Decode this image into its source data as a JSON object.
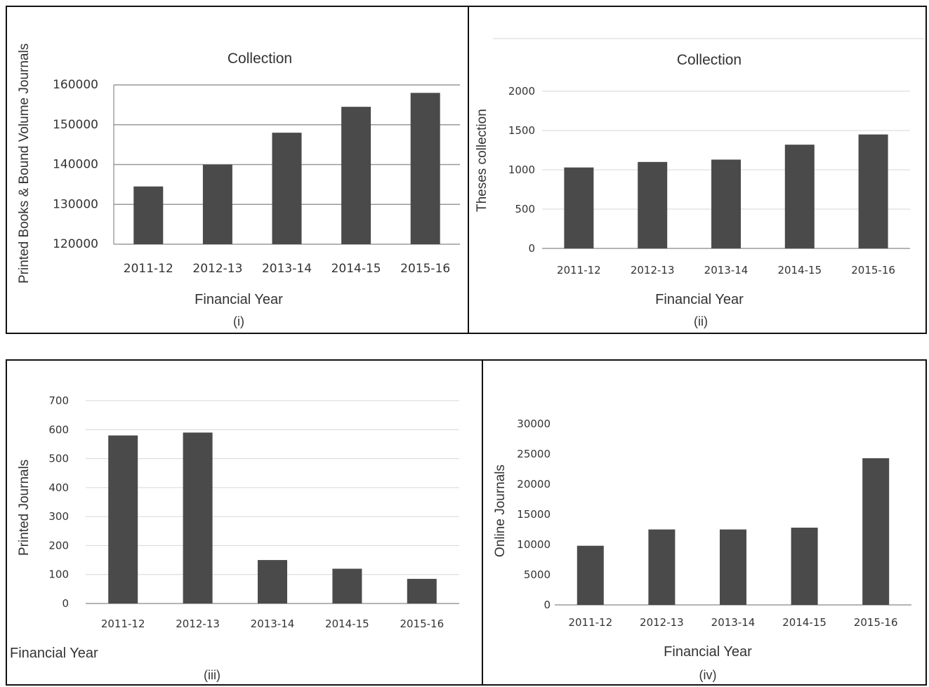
{
  "chart_data": [
    {
      "type": "bar",
      "title": "Collection",
      "xlabel": "Financial Year",
      "ylabel": "Printed Books & Bound Volume Journals",
      "panel_label": "(i)",
      "categories": [
        "2011-12",
        "2012-13",
        "2013-14",
        "2014-15",
        "2015-16"
      ],
      "values": [
        134500,
        140000,
        148000,
        154500,
        158000
      ],
      "yticks": [
        "120000",
        "130000",
        "140000",
        "150000",
        "160000"
      ],
      "ylim": [
        120000,
        160000
      ],
      "grid": true
    },
    {
      "type": "bar",
      "title": "Collection",
      "xlabel": "Financial Year",
      "ylabel": "Theses collection",
      "panel_label": "(ii)",
      "categories": [
        "2011-12",
        "2012-13",
        "2013-14",
        "2014-15",
        "2015-16"
      ],
      "values": [
        1030,
        1100,
        1130,
        1320,
        1450
      ],
      "yticks": [
        "0",
        "500",
        "1000",
        "1500",
        "2000"
      ],
      "ylim": [
        0,
        2000
      ],
      "grid": true
    },
    {
      "type": "bar",
      "title": "",
      "xlabel": "Financial Year",
      "ylabel": "Printed Journals",
      "panel_label": "(iii)",
      "categories": [
        "2011-12",
        "2012-13",
        "2013-14",
        "2014-15",
        "2015-16"
      ],
      "values": [
        580,
        590,
        150,
        120,
        85
      ],
      "yticks": [
        "0",
        "100",
        "200",
        "300",
        "400",
        "500",
        "600",
        "700"
      ],
      "ylim": [
        0,
        700
      ],
      "grid": true
    },
    {
      "type": "bar",
      "title": "",
      "xlabel": "Financial Year",
      "ylabel": "Online Journals",
      "panel_label": "(iv)",
      "categories": [
        "2011-12",
        "2012-13",
        "2013-14",
        "2014-15",
        "2015-16"
      ],
      "values": [
        9800,
        12500,
        12500,
        12800,
        24300
      ],
      "yticks": [
        "0",
        "5000",
        "10000",
        "15000",
        "20000",
        "25000",
        "30000"
      ],
      "ylim": [
        0,
        30000
      ],
      "grid": false
    }
  ]
}
